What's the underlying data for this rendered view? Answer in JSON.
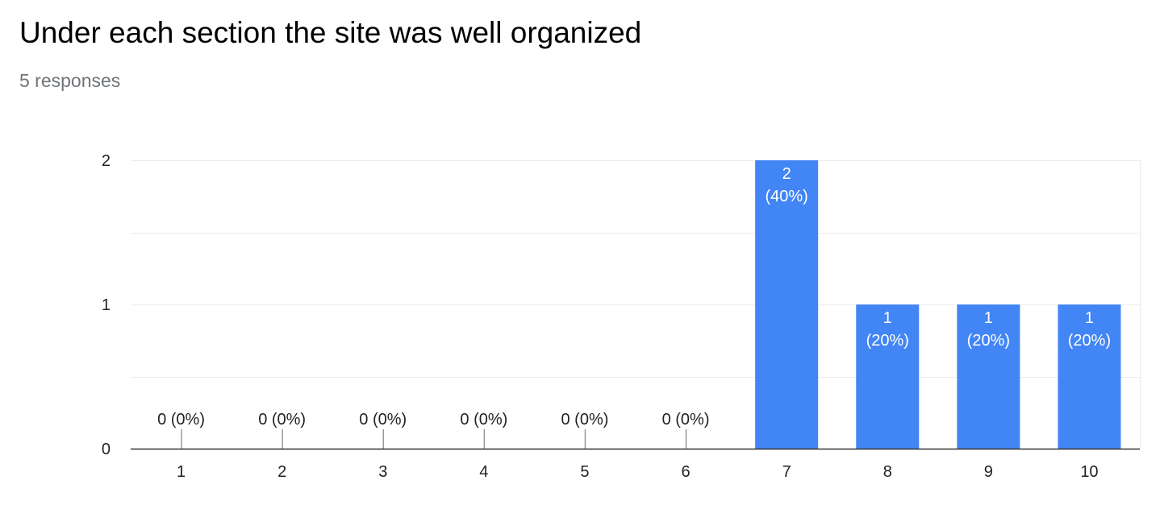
{
  "header": {
    "title": "Under each section the site was well organized",
    "subtitle": "5 responses"
  },
  "colors": {
    "bar": "#4285f4",
    "bar_label_inside": "#ffffff",
    "label_outside": "#222222",
    "grid": "#ebebeb",
    "baseline": "#333333",
    "zero_tick": "#999999"
  },
  "chart_data": {
    "type": "bar",
    "title": "Under each section the site was well organized",
    "subtitle": "5 responses",
    "categories": [
      "1",
      "2",
      "3",
      "4",
      "5",
      "6",
      "7",
      "8",
      "9",
      "10"
    ],
    "values": [
      0,
      0,
      0,
      0,
      0,
      0,
      2,
      1,
      1,
      1
    ],
    "data_labels": [
      [
        "0 (0%)"
      ],
      [
        "0 (0%)"
      ],
      [
        "0 (0%)"
      ],
      [
        "0 (0%)"
      ],
      [
        "0 (0%)"
      ],
      [
        "0 (0%)"
      ],
      [
        "2",
        "(40%)"
      ],
      [
        "1",
        "(20%)"
      ],
      [
        "1",
        "(20%)"
      ],
      [
        "1",
        "(20%)"
      ]
    ],
    "yticks": [
      0,
      1,
      2
    ],
    "ylim": [
      0,
      2
    ],
    "gridlines": [
      0.5,
      1,
      1.5,
      2
    ],
    "xlabel": "",
    "ylabel": "",
    "grid": true,
    "legend": "none"
  }
}
